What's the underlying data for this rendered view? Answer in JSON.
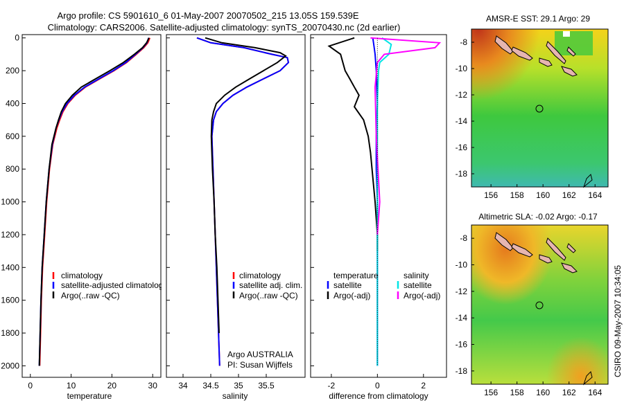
{
  "header": {
    "line1": "Argo profile: CS 5901610_6 01-May-2007 20070502_215 13.05S 159.539E",
    "line2": "Climatology: CARS2006. Satellite-adjusted climatology: synTS_20070430.nc (2d earlier)"
  },
  "side_label": "CSIRO 09-May-2007 10:34:05",
  "chart_data": [
    {
      "type": "line",
      "xlabel": "temperature",
      "ylabel": "",
      "xlim": [
        -2,
        32
      ],
      "ylim": [
        2070,
        -20
      ],
      "y_reversed": true,
      "xticks": [
        0,
        10,
        20,
        30
      ],
      "yticks": [
        0,
        200,
        400,
        600,
        800,
        1000,
        1200,
        1400,
        1600,
        1800,
        2000
      ],
      "legend": [
        "climatology",
        "satellite-adjusted climatolog",
        "Argo(..raw -QC)"
      ],
      "series": [
        {
          "name": "climatology",
          "color": "#ff0000",
          "x": [
            29.3,
            28.8,
            27.8,
            26.0,
            23.6,
            20.5,
            17.0,
            13.5,
            11.0,
            9.2,
            8.0,
            7.2,
            6.5,
            5.5,
            4.7,
            4.0,
            3.5,
            3.0,
            2.7,
            2.5,
            2.3
          ],
          "y": [
            0,
            30,
            60,
            100,
            150,
            200,
            250,
            300,
            350,
            400,
            450,
            500,
            550,
            650,
            800,
            1000,
            1200,
            1400,
            1600,
            1800,
            2000
          ]
        },
        {
          "name": "satellite-adjusted climatolog",
          "color": "#0000ff",
          "x": [
            29.0,
            28.6,
            27.6,
            25.8,
            23.4,
            20.3,
            16.8,
            13.3,
            10.8,
            9.0,
            7.8,
            7.0,
            6.3,
            5.4,
            4.6,
            3.9,
            3.4,
            2.9,
            2.6,
            2.4,
            2.2
          ],
          "y": [
            0,
            30,
            60,
            100,
            150,
            200,
            250,
            300,
            350,
            400,
            450,
            500,
            550,
            650,
            800,
            1000,
            1200,
            1400,
            1600,
            1800,
            2000
          ]
        },
        {
          "name": "Argo(..raw -QC)",
          "color": "#000000",
          "x": [
            29.1,
            28.5,
            27.5,
            25.5,
            22.8,
            19.5,
            16.0,
            12.5,
            10.3,
            8.6,
            7.6,
            6.9,
            6.3,
            5.3,
            4.6,
            3.9,
            3.4,
            2.9,
            2.6,
            2.4,
            2.2
          ],
          "y": [
            0,
            30,
            60,
            100,
            150,
            200,
            250,
            300,
            350,
            400,
            450,
            500,
            550,
            650,
            800,
            1000,
            1200,
            1400,
            1600,
            1800,
            2000
          ]
        }
      ]
    },
    {
      "type": "line",
      "xlabel": "salinity",
      "xlim": [
        33.7,
        36.2
      ],
      "ylim": [
        2070,
        -20
      ],
      "y_reversed": true,
      "xticks": [
        34,
        34.5,
        35,
        35.5
      ],
      "yticks": [
        0,
        200,
        400,
        600,
        800,
        1000,
        1200,
        1400,
        1600,
        1800,
        2000
      ],
      "legend": [
        "climatology",
        "satellite adj. clim.",
        "Argo(..raw -QC)"
      ],
      "annotation": [
        "Argo AUSTRALIA",
        "PI: Susan Wijffels"
      ],
      "series": [
        {
          "name": "climatology",
          "color": "#ff0000",
          "x": [
            34.25,
            34.5,
            35.1,
            35.6,
            35.88,
            35.9,
            35.75,
            35.45,
            35.15,
            34.9,
            34.72,
            34.6,
            34.55,
            34.52,
            34.53,
            34.55,
            34.58,
            34.6,
            34.62,
            34.64,
            34.66
          ],
          "y": [
            0,
            30,
            60,
            100,
            120,
            150,
            200,
            250,
            300,
            350,
            400,
            450,
            500,
            600,
            700,
            900,
            1200,
            1400,
            1600,
            1800,
            2000
          ]
        },
        {
          "name": "satellite adj. clim.",
          "color": "#0000ff",
          "x": [
            34.25,
            34.5,
            35.1,
            35.6,
            35.88,
            35.9,
            35.75,
            35.45,
            35.15,
            34.9,
            34.72,
            34.6,
            34.55,
            34.52,
            34.53,
            34.55,
            34.58,
            34.6,
            34.62,
            34.64,
            34.66
          ],
          "y": [
            0,
            30,
            60,
            100,
            120,
            150,
            200,
            250,
            300,
            350,
            400,
            450,
            500,
            600,
            700,
            900,
            1200,
            1400,
            1600,
            1800,
            2000
          ]
        },
        {
          "name": "Argo(..raw -QC)",
          "color": "#000000",
          "x": [
            34.4,
            34.7,
            35.3,
            35.75,
            35.85,
            35.7,
            35.45,
            35.2,
            34.95,
            34.75,
            34.6,
            34.55,
            34.52,
            34.51,
            34.53,
            34.56,
            34.58,
            34.61,
            34.63,
            34.65
          ],
          "y": [
            0,
            30,
            60,
            90,
            110,
            150,
            200,
            250,
            300,
            350,
            400,
            450,
            500,
            600,
            800,
            1000,
            1200,
            1400,
            1600,
            1800
          ]
        }
      ]
    },
    {
      "type": "line",
      "xlabel": "difference from climatology",
      "xlim": [
        -2.9,
        3.0
      ],
      "ylim": [
        2070,
        -20
      ],
      "y_reversed": true,
      "xticks": [
        -2,
        0,
        2
      ],
      "yticks": [
        0,
        200,
        400,
        600,
        800,
        1000,
        1200,
        1400,
        1600,
        1800,
        2000
      ],
      "legend_left": [
        "temperature",
        "satellite",
        "Argo(-adj)"
      ],
      "legend_right": [
        "salinity",
        "satellite",
        "Argo(-adj)"
      ],
      "series": [
        {
          "name": "satellite",
          "color": "#0000ff",
          "x": [
            -0.2,
            -0.15,
            -0.1,
            -0.05,
            0.0,
            -0.05,
            -0.05,
            0.0,
            0.0,
            0.0,
            0.0
          ],
          "y": [
            0,
            50,
            100,
            200,
            400,
            600,
            800,
            1000,
            1400,
            1800,
            2000
          ]
        },
        {
          "name": "Argo(-adj)",
          "color": "#000000",
          "x": [
            -1.0,
            -2.1,
            -1.6,
            -1.5,
            -1.4,
            -1.2,
            -1.0,
            -0.8,
            -1.0,
            -0.6,
            -0.4,
            -0.3,
            -0.2,
            -0.1,
            0.0,
            0.0
          ],
          "y": [
            0,
            50,
            100,
            150,
            200,
            250,
            300,
            350,
            420,
            500,
            600,
            700,
            850,
            1000,
            1200,
            1300
          ]
        },
        {
          "name": "satellite",
          "color": "#00e5e5",
          "x": [
            0.2,
            0.6,
            0.5,
            0.1,
            0.05,
            0.0,
            0.0,
            0.0,
            0.0
          ],
          "y": [
            0,
            40,
            100,
            150,
            200,
            400,
            800,
            1400,
            2000
          ]
        },
        {
          "name": "Argo(-adj)",
          "color": "#ff00ff",
          "x": [
            -0.3,
            2.7,
            2.5,
            0.3,
            0.0,
            -0.1,
            -0.05,
            0.1,
            0.0
          ],
          "y": [
            0,
            30,
            60,
            100,
            150,
            300,
            600,
            1000,
            1200
          ]
        }
      ]
    },
    {
      "type": "heatmap",
      "title": "AMSR-E SST: 29.1  Argo: 29",
      "xticks": [
        156,
        158,
        160,
        162,
        164
      ],
      "yticks": [
        -8,
        -10,
        -12,
        -14,
        -16,
        -18
      ],
      "xlim": [
        154.5,
        165
      ],
      "ylim": [
        -19,
        -7
      ]
    },
    {
      "type": "heatmap",
      "title": "Altimetric SLA: -0.02  Argo: -0.17",
      "xticks": [
        156,
        158,
        160,
        162,
        164
      ],
      "yticks": [
        -8,
        -10,
        -12,
        -14,
        -16,
        -18
      ],
      "xlim": [
        154.5,
        165
      ],
      "ylim": [
        -19,
        -7
      ]
    }
  ]
}
